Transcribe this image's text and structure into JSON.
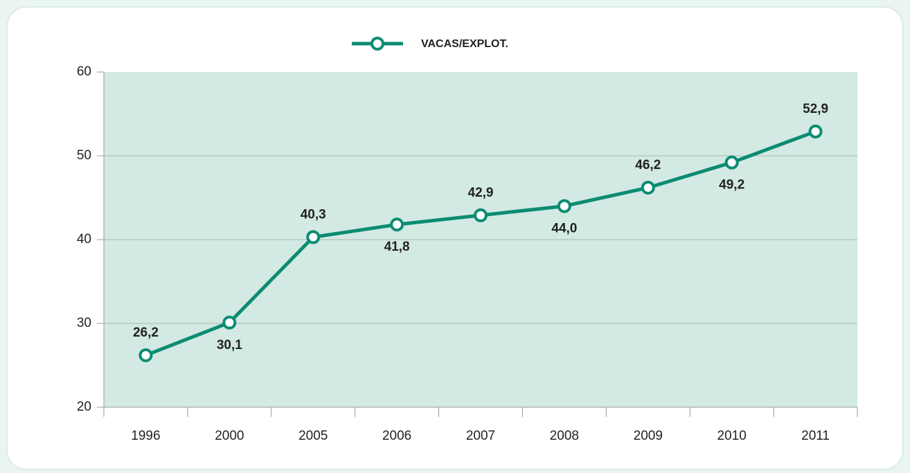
{
  "chart_data": {
    "type": "line",
    "categories": [
      "1996",
      "2000",
      "2005",
      "2006",
      "2007",
      "2008",
      "2009",
      "2010",
      "2011"
    ],
    "series": [
      {
        "name": "VACAS/EXPLOT.",
        "color": "#0b8c72",
        "values": [
          26.2,
          30.1,
          40.3,
          41.8,
          42.9,
          44.0,
          46.2,
          49.2,
          52.9
        ],
        "value_labels": [
          "26,2",
          "30,1",
          "40,3",
          "41,8",
          "42,9",
          "44,0",
          "46,2",
          "49,2",
          "52,9"
        ]
      }
    ],
    "ylim": [
      20,
      60
    ],
    "yticks": [
      20,
      30,
      40,
      50,
      60
    ],
    "grid": true,
    "legend": "top"
  }
}
